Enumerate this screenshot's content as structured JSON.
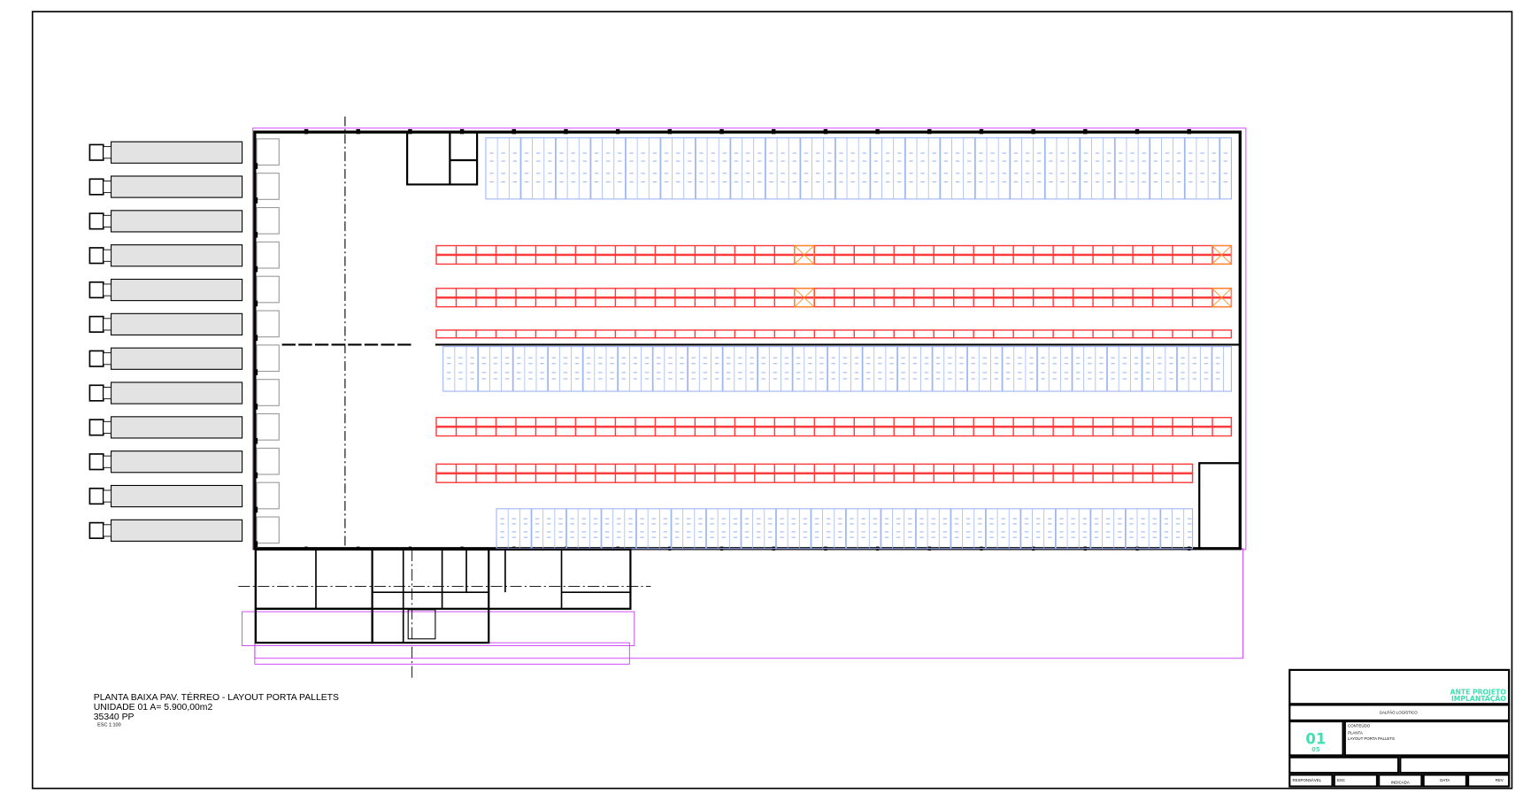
{
  "drawing": {
    "title_lines": [
      "PLANTA BAIXA PAV. TÉRREO - LAYOUT PORTA PALLETS",
      "UNIDADE 01 A= 5.900,00m2",
      "35340 PP",
      "ESC 1:100"
    ],
    "truck_count": 12,
    "colors": {
      "wall": "#000000",
      "selective_rack": "#ff3b3b",
      "drive_in_rack": "#9fb6f5",
      "outline": "#cc33ff",
      "truck_fill": "#e3e3e3",
      "accent": "#3de0b0"
    }
  },
  "title_block": {
    "stage_line1": "ANTE PROJETO",
    "stage_line2": "IMPLANTAÇÃO",
    "project": "GALPÃO LOGÍSTICO",
    "sheet_number": "01",
    "sheet_total": "05",
    "content_label": "CONTEÚDO",
    "content_lines": [
      "PLANTA",
      "LAYOUT PORTA PALLETS"
    ],
    "footer_cells": [
      "RESPONSÁVEL",
      "ESC",
      "INDICADA",
      "DATA",
      "REV"
    ]
  }
}
